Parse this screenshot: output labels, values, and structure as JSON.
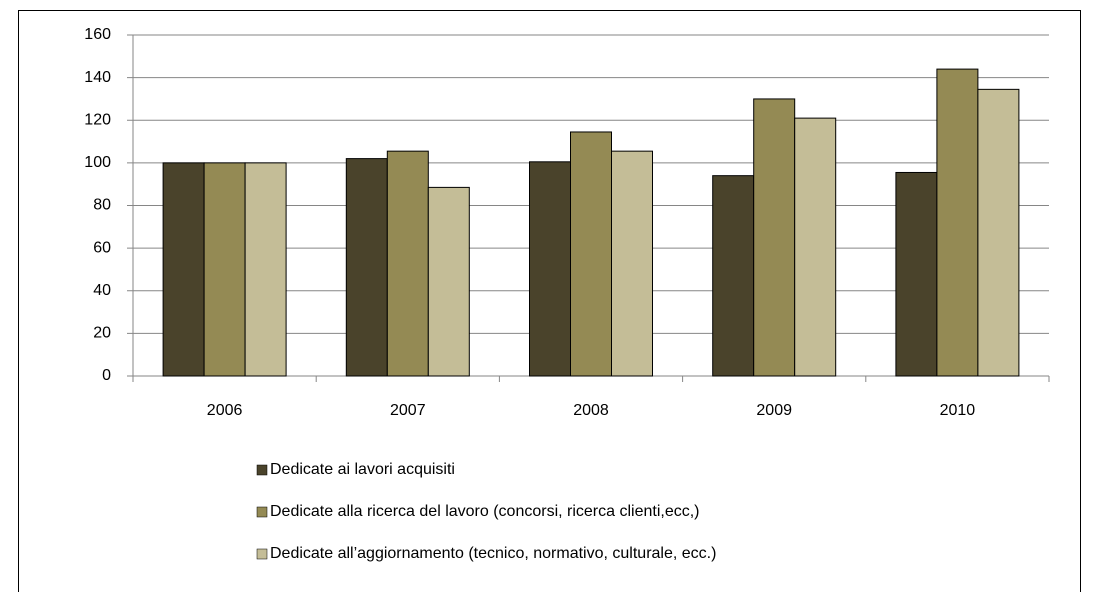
{
  "chart_data": {
    "type": "bar",
    "categories": [
      "2006",
      "2007",
      "2008",
      "2009",
      "2010"
    ],
    "series": [
      {
        "name": "Dedicate ai lavori acquisiti",
        "color": "#4a432b",
        "values": [
          100,
          102,
          100.5,
          94,
          95.5
        ]
      },
      {
        "name": "Dedicate alla ricerca del lavoro (concorsi, ricerca clienti,ecc,)",
        "color": "#948a54",
        "values": [
          100,
          105.5,
          114.5,
          130,
          144
        ]
      },
      {
        "name": "Dedicate all’aggiornamento (tecnico, normativo, culturale, ecc.)",
        "color": "#c4bd97",
        "values": [
          100,
          88.5,
          105.5,
          121,
          134.5
        ]
      }
    ],
    "ylim": [
      0,
      160
    ],
    "yticks": [
      0,
      20,
      40,
      60,
      80,
      100,
      120,
      140,
      160
    ],
    "grid": true,
    "legend": "bottom"
  }
}
